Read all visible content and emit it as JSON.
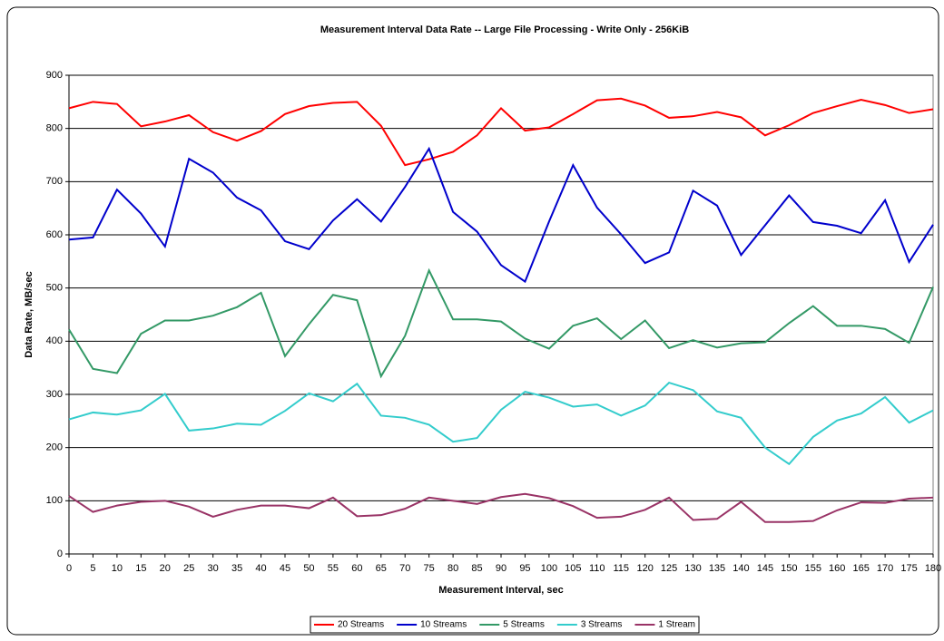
{
  "chart_data": {
    "type": "line",
    "title": "Measurement Interval Data Rate -- Large File Processing - Write Only - 256KiB",
    "x_label": "Measurement Interval, sec",
    "y_label": "Data Rate, MB/sec",
    "x": [
      0,
      5,
      10,
      15,
      20,
      25,
      30,
      35,
      40,
      45,
      50,
      55,
      60,
      65,
      70,
      75,
      80,
      85,
      90,
      95,
      100,
      105,
      110,
      115,
      120,
      125,
      130,
      135,
      140,
      145,
      150,
      155,
      160,
      165,
      170,
      175,
      180
    ],
    "xlim": [
      0,
      180
    ],
    "xticks": [
      0,
      5,
      10,
      15,
      20,
      25,
      30,
      35,
      40,
      45,
      50,
      55,
      60,
      65,
      70,
      75,
      80,
      85,
      90,
      95,
      100,
      105,
      110,
      115,
      120,
      125,
      130,
      135,
      140,
      145,
      150,
      155,
      160,
      165,
      170,
      175,
      180
    ],
    "ylim": [
      0,
      900
    ],
    "yticks": [
      0,
      100,
      200,
      300,
      400,
      500,
      600,
      700,
      800,
      900
    ],
    "grid": true,
    "legend": "bottom",
    "series": [
      {
        "name": "20 Streams",
        "color": "#ff0000",
        "values": [
          838,
          850,
          846,
          804,
          813,
          825,
          793,
          777,
          795,
          827,
          842,
          848,
          850,
          805,
          731,
          742,
          756,
          787,
          838,
          796,
          802,
          827,
          853,
          856,
          843,
          820,
          823,
          831,
          821,
          787,
          806,
          829,
          842,
          854,
          844,
          829,
          836
        ]
      },
      {
        "name": "10 Streams",
        "color": "#0000cc",
        "values": [
          591,
          595,
          685,
          640,
          578,
          743,
          717,
          670,
          646,
          588,
          573,
          627,
          667,
          625,
          690,
          762,
          643,
          606,
          543,
          512,
          625,
          731,
          651,
          601,
          547,
          567,
          683,
          655,
          562,
          618,
          674,
          624,
          617,
          603,
          665,
          549,
          619
        ]
      },
      {
        "name": "5 Streams",
        "color": "#339966",
        "values": [
          422,
          348,
          340,
          414,
          439,
          439,
          448,
          464,
          491,
          372,
          432,
          487,
          477,
          334,
          410,
          533,
          441,
          441,
          437,
          405,
          386,
          429,
          443,
          404,
          439,
          387,
          402,
          388,
          396,
          398,
          434,
          466,
          429,
          429,
          423,
          397,
          502
        ]
      },
      {
        "name": "3 Streams",
        "color": "#33cccc",
        "values": [
          253,
          266,
          262,
          270,
          301,
          232,
          236,
          245,
          243,
          269,
          302,
          287,
          320,
          260,
          256,
          243,
          211,
          218,
          271,
          305,
          294,
          277,
          281,
          260,
          279,
          322,
          308,
          268,
          256,
          200,
          169,
          220,
          251,
          264,
          295,
          247,
          270
        ]
      },
      {
        "name": "1 Stream",
        "color": "#993366",
        "values": [
          109,
          79,
          91,
          98,
          100,
          89,
          70,
          83,
          91,
          91,
          86,
          106,
          71,
          73,
          85,
          106,
          100,
          94,
          107,
          113,
          105,
          90,
          68,
          70,
          83,
          106,
          64,
          66,
          98,
          60,
          60,
          62,
          82,
          97,
          96,
          104,
          106
        ]
      }
    ]
  }
}
